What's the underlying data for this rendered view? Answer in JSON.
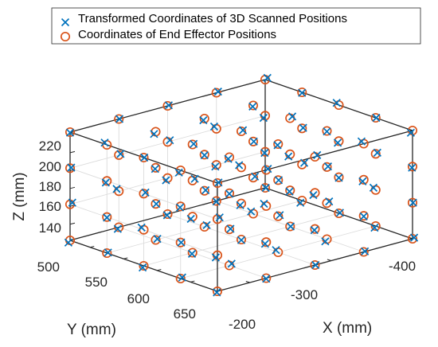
{
  "chart_data": {
    "type": "scatter3d",
    "title": "",
    "xlabel": "X (mm)",
    "ylabel": "Y (mm)",
    "zlabel": "Z (mm)",
    "xlim": [
      -440,
      -200
    ],
    "ylim": [
      470,
      690
    ],
    "zlim": [
      122,
      243
    ],
    "x_ticks": [
      -400,
      -300,
      -200
    ],
    "x_tick_labels": [
      "-400",
      "-300",
      "-200"
    ],
    "y_ticks": [
      500,
      550,
      600,
      650
    ],
    "y_tick_labels": [
      "500",
      "550",
      "600",
      "650"
    ],
    "z_ticks": [
      140,
      160,
      180,
      200,
      220
    ],
    "z_tick_labels": [
      "140",
      "160",
      "180",
      "200",
      "220"
    ],
    "grid": true,
    "box": true,
    "legend": {
      "placement": "top"
    },
    "grid_layout": {
      "x": [
        -440,
        -380,
        -320,
        -260,
        -200
      ],
      "y": [
        470,
        525,
        580,
        635,
        690
      ],
      "z": [
        122,
        162.3,
        202.7,
        243
      ]
    },
    "series": [
      {
        "name": "Transformed Coordinates of 3D Scanned Positions",
        "marker": "x",
        "color": "#0072BD"
      },
      {
        "name": "Coordinates of End Effector Positions",
        "marker": "o",
        "color": "#D95319"
      }
    ]
  }
}
